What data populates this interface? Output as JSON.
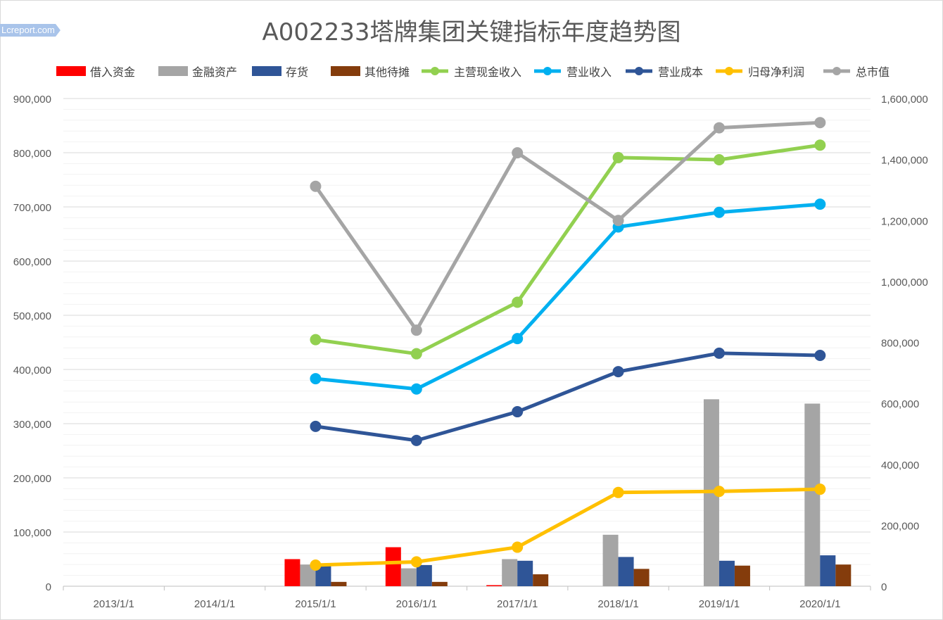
{
  "watermark": "Lcreport.com",
  "chart_data": {
    "type": "bar+line",
    "title": "A002233塔牌集团关键指标年度趋势图",
    "categories": [
      "2013/1/1",
      "2014/1/1",
      "2015/1/1",
      "2016/1/1",
      "2017/1/1",
      "2018/1/1",
      "2019/1/1",
      "2020/1/1"
    ],
    "y_left": {
      "ylim": [
        0,
        900000
      ],
      "ticks": [
        "0",
        "100,000",
        "200,000",
        "300,000",
        "400,000",
        "500,000",
        "600,000",
        "700,000",
        "800,000",
        "900,000"
      ]
    },
    "y_right": {
      "ylim": [
        0,
        1600000
      ],
      "ticks": [
        "0",
        "200,000",
        "400,000",
        "600,000",
        "800,000",
        "1,000,000",
        "1,200,000",
        "1,400,000",
        "1,600,000"
      ]
    },
    "grid": true,
    "legend_position": "top",
    "bar_series": [
      {
        "name": "借入资金",
        "color": "#ff0000",
        "values": [
          null,
          null,
          50000,
          72000,
          2000,
          null,
          null,
          null
        ]
      },
      {
        "name": "金融资产",
        "color": "#a5a5a5",
        "values": [
          null,
          null,
          40000,
          33000,
          50000,
          95000,
          345000,
          337000
        ]
      },
      {
        "name": "存货",
        "color": "#2f5597",
        "values": [
          null,
          null,
          42000,
          39000,
          47000,
          54000,
          47000,
          57000
        ]
      },
      {
        "name": "其他待摊",
        "color": "#843c0c",
        "values": [
          null,
          null,
          8000,
          8000,
          22000,
          32000,
          38000,
          40000
        ]
      }
    ],
    "line_series": [
      {
        "name": "主营现金收入",
        "color": "#92d050",
        "axis": "left",
        "values": [
          null,
          null,
          455000,
          429000,
          524000,
          791000,
          787000,
          814000
        ]
      },
      {
        "name": "营业收入",
        "color": "#00b0f0",
        "axis": "left",
        "values": [
          null,
          null,
          383000,
          364000,
          457000,
          663000,
          690000,
          705000
        ]
      },
      {
        "name": "营业成本",
        "color": "#2f5597",
        "axis": "left",
        "values": [
          null,
          null,
          295000,
          269000,
          322000,
          396000,
          430000,
          426000
        ]
      },
      {
        "name": "归母净利润",
        "color": "#ffc000",
        "axis": "left",
        "values": [
          null,
          null,
          39000,
          45000,
          72000,
          173000,
          175000,
          179000
        ]
      },
      {
        "name": "总市值",
        "color": "#a5a5a5",
        "axis": "right",
        "values": [
          null,
          null,
          1312000,
          840000,
          1422000,
          1200000,
          1504000,
          1521000
        ]
      }
    ]
  }
}
